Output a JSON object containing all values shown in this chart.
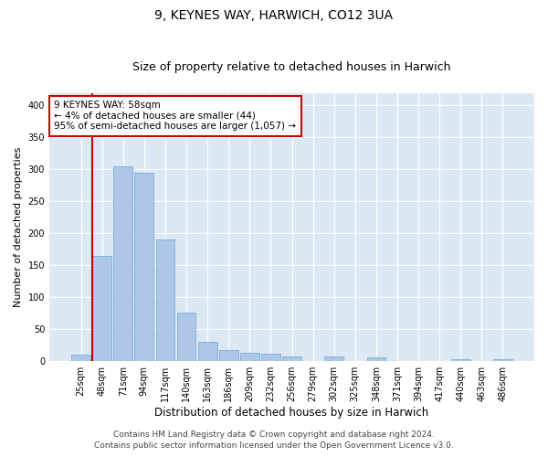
{
  "title1": "9, KEYNES WAY, HARWICH, CO12 3UA",
  "title2": "Size of property relative to detached houses in Harwich",
  "xlabel": "Distribution of detached houses by size in Harwich",
  "ylabel": "Number of detached properties",
  "categories": [
    "25sqm",
    "48sqm",
    "71sqm",
    "94sqm",
    "117sqm",
    "140sqm",
    "163sqm",
    "186sqm",
    "209sqm",
    "232sqm",
    "256sqm",
    "279sqm",
    "302sqm",
    "325sqm",
    "348sqm",
    "371sqm",
    "394sqm",
    "417sqm",
    "440sqm",
    "463sqm",
    "486sqm"
  ],
  "values": [
    10,
    165,
    305,
    295,
    190,
    75,
    30,
    17,
    12,
    11,
    7,
    0,
    7,
    0,
    5,
    0,
    0,
    0,
    2,
    0,
    2
  ],
  "bar_color": "#aec6e8",
  "bar_edge_color": "#7bafd4",
  "vline_color": "#cc0000",
  "vline_x_index": 1,
  "annotation_line1": "9 KEYNES WAY: 58sqm",
  "annotation_line2": "← 4% of detached houses are smaller (44)",
  "annotation_line3": "95% of semi-detached houses are larger (1,057) →",
  "annotation_box_color": "#ffffff",
  "annotation_box_edge_color": "#cc0000",
  "ylim": [
    0,
    420
  ],
  "yticks": [
    0,
    50,
    100,
    150,
    200,
    250,
    300,
    350,
    400
  ],
  "plot_bg_color": "#dce9f5",
  "footer1": "Contains HM Land Registry data © Crown copyright and database right 2024.",
  "footer2": "Contains public sector information licensed under the Open Government Licence v3.0.",
  "title_fontsize": 10,
  "subtitle_fontsize": 9,
  "xlabel_fontsize": 8.5,
  "ylabel_fontsize": 8,
  "tick_fontsize": 7,
  "annotation_fontsize": 7.5,
  "footer_fontsize": 6.5
}
